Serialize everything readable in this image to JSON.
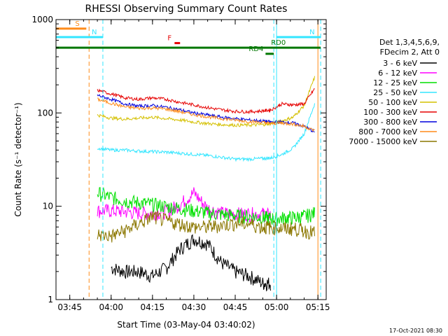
{
  "chart_data": {
    "type": "line",
    "title": "RHESSI Observing Summary Count Rates",
    "xlabel": "Start Time (03-May-04 03:40:02)",
    "ylabel": "Count Rate (s⁻¹ detector⁻¹)",
    "y_scale": "log",
    "ylim": [
      1,
      1000
    ],
    "xlim": [
      "03:40",
      "05:18"
    ],
    "x_ticks": [
      "03:45",
      "04:00",
      "04:15",
      "04:30",
      "04:45",
      "05:00",
      "05:15"
    ],
    "y_ticks": [
      "1",
      "10",
      "100",
      "1000"
    ],
    "grid": false,
    "legend_header": [
      "Det 1,3,4,5,6,9,",
      "FDecim 2, Att 0"
    ],
    "legend_position": "right",
    "footer_date": "17-Oct-2021 08:30",
    "flags": [
      {
        "label": "S",
        "color": "#ff8c1a",
        "y": 800,
        "x_start": "03:40",
        "x_end": "03:51"
      },
      {
        "label": "N",
        "color": "#33e6ff",
        "y": 650,
        "x_start": "03:40",
        "x_end": "03:57"
      },
      {
        "label": "N",
        "color": "#33e6ff",
        "y": 650,
        "x_start": "05:00",
        "x_end": "05:16"
      },
      {
        "label": "F",
        "color": "#e60000",
        "y": 560,
        "x_start": "04:23",
        "x_end": "04:25"
      },
      {
        "label": "RD0",
        "color": "#007700",
        "y": 500,
        "x_start": "03:40",
        "x_end": "05:16"
      },
      {
        "label": "RD4",
        "color": "#007700",
        "y": 430,
        "x_start": "04:56",
        "x_end": "04:59"
      }
    ],
    "vertical_markers": [
      {
        "x": "03:52",
        "color": "#ff8c1a",
        "style": "dashed"
      },
      {
        "x": "03:57",
        "color": "#33e6ff",
        "style": "dashed"
      },
      {
        "x": "04:59",
        "color": "#33e6ff",
        "style": "dashed"
      },
      {
        "x": "05:00",
        "color": "#33e6ff",
        "style": "solid"
      },
      {
        "x": "05:15",
        "color": "#ff8c1a",
        "style": "solid"
      },
      {
        "x": "05:16",
        "color": "#33e6ff",
        "style": "dashed"
      }
    ],
    "x": [
      "03:55",
      "04:00",
      "04:05",
      "04:10",
      "04:15",
      "04:20",
      "04:25",
      "04:30",
      "04:35",
      "04:40",
      "04:45",
      "04:50",
      "04:55",
      "04:58",
      "05:02",
      "05:06",
      "05:10",
      "05:14"
    ],
    "series": [
      {
        "name": "3 - 6 keV",
        "color": "#000000",
        "values": [
          null,
          2.2,
          2.0,
          2.0,
          1.8,
          2.2,
          3.5,
          4.5,
          4.0,
          2.5,
          2.0,
          1.8,
          1.5,
          1.5,
          null,
          null,
          null,
          null
        ]
      },
      {
        "name": "6 - 12 keV",
        "color": "#ff00ff",
        "values": [
          9.0,
          9.0,
          8.8,
          8.5,
          8.5,
          8.8,
          10.5,
          14.0,
          9.5,
          8.5,
          8.3,
          8.3,
          8.3,
          8.0,
          null,
          null,
          null,
          null
        ]
      },
      {
        "name": "12 - 25 keV",
        "color": "#00e000",
        "values": [
          14.0,
          12.5,
          11.5,
          11.0,
          10.5,
          10.0,
          9.5,
          9.0,
          8.5,
          8.2,
          8.0,
          7.8,
          7.6,
          7.4,
          7.5,
          7.6,
          7.8,
          8.5
        ]
      },
      {
        "name": "25 - 50 keV",
        "color": "#33e6ff",
        "values": [
          42,
          40,
          40,
          39,
          38.5,
          38,
          37,
          36,
          35,
          33.5,
          32,
          32,
          32.5,
          33,
          36,
          42,
          60,
          130
        ]
      },
      {
        "name": "50 - 100 keV",
        "color": "#d4c000",
        "values": [
          95,
          88,
          86,
          88,
          90,
          87,
          84,
          80,
          77,
          75,
          74,
          74,
          75,
          77,
          82,
          90,
          120,
          250
        ]
      },
      {
        "name": "100 - 300 keV",
        "color": "#e60000",
        "values": [
          175,
          160,
          145,
          140,
          145,
          140,
          130,
          122,
          114,
          108,
          104,
          103,
          105,
          108,
          125,
          122,
          125,
          185
        ]
      },
      {
        "name": "300 - 800 keV",
        "color": "#0000dd",
        "values": [
          155,
          140,
          125,
          118,
          120,
          115,
          108,
          100,
          95,
          90,
          87,
          84,
          82,
          80,
          80,
          78,
          72,
          62
        ]
      },
      {
        "name": "800 - 7000 keV",
        "color": "#ff8c1a",
        "values": [
          140,
          127,
          116,
          112,
          113,
          110,
          103,
          96,
          91,
          87,
          84,
          81,
          79,
          77,
          78,
          76,
          72,
          64
        ]
      },
      {
        "name": "7000 - 15000 keV",
        "color": "#8b7700",
        "values": [
          5.0,
          4.8,
          5.5,
          6.5,
          7.8,
          7.0,
          6.5,
          6.0,
          6.0,
          6.3,
          6.6,
          6.5,
          6.0,
          6.0,
          5.8,
          5.8,
          5.5,
          5.2
        ]
      }
    ]
  }
}
